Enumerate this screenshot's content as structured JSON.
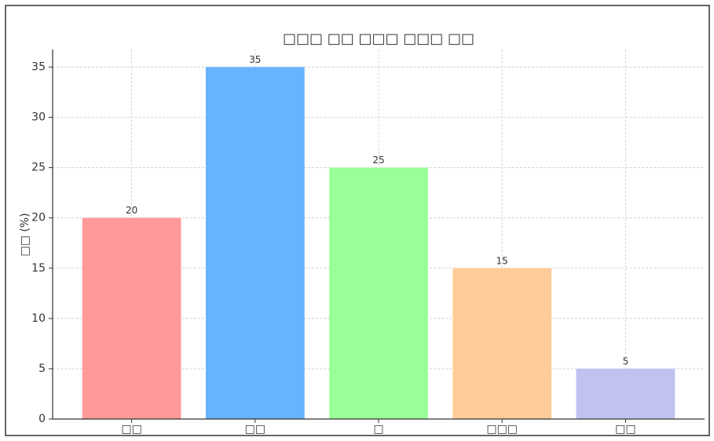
{
  "chart_data": {
    "type": "bar",
    "title": "□□□ □□ □□□ □□□ □□",
    "y_label": "□□ (%)",
    "categories": [
      "□□",
      "□□",
      "□",
      "□□□",
      "□□"
    ],
    "values": [
      20,
      35,
      25,
      15,
      5
    ],
    "colors": [
      "#ff9999",
      "#66b3ff",
      "#99ff99",
      "#ffcc99",
      "#c2c2f0"
    ],
    "ylim": [
      0,
      36.75
    ],
    "yticks": [
      0,
      5,
      10,
      15,
      20,
      25,
      30,
      35
    ],
    "grid": true
  }
}
